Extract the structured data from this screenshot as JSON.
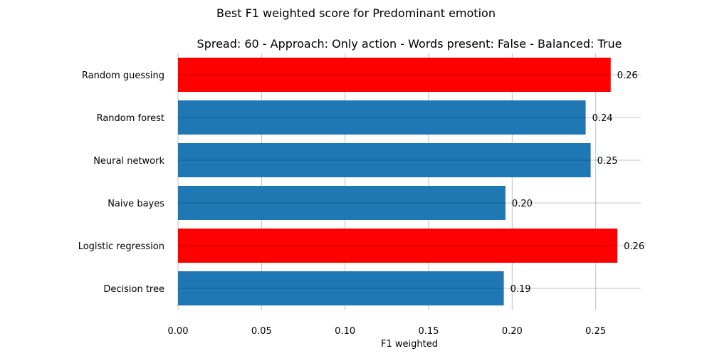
{
  "chart_data": {
    "type": "bar",
    "orientation": "horizontal",
    "title": "Best F1 weighted score for Predominant emotion",
    "subtitle": "Spread: 60 - Approach: Only action - Words present: False - Balanced: True",
    "xlabel": "F1 weighted",
    "ylabel": "",
    "xlim": [
      0,
      0.277
    ],
    "xticks": [
      "0.00",
      "0.05",
      "0.10",
      "0.15",
      "0.20",
      "0.25"
    ],
    "grid": true,
    "categories": [
      "Random guessing",
      "Random forest",
      "Neural network",
      "Naive bayes",
      "Logistic regression",
      "Decision tree"
    ],
    "values": [
      0.259,
      0.244,
      0.247,
      0.196,
      0.263,
      0.195
    ],
    "value_labels": [
      "0.26",
      "0.24",
      "0.25",
      "0.20",
      "0.26",
      "0.19"
    ],
    "highlighted": [
      true,
      false,
      false,
      false,
      true,
      false
    ],
    "colors": {
      "default": "#1f77b4",
      "highlight": "#ff0000",
      "grid": "#b0b0b0"
    }
  }
}
